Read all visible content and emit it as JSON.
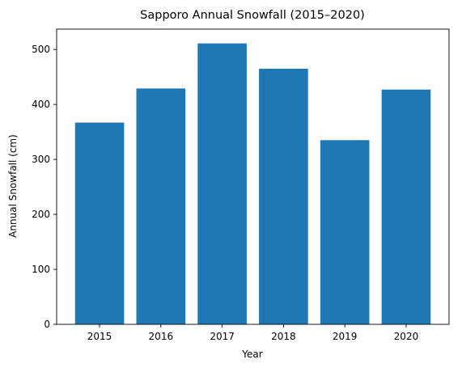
{
  "chart_data": {
    "type": "bar",
    "title": "Sapporo Annual Snowfall (2015–2020)",
    "xlabel": "Year",
    "ylabel": "Annual Snowfall (cm)",
    "categories": [
      "2015",
      "2016",
      "2017",
      "2018",
      "2019",
      "2020"
    ],
    "values": [
      367,
      429,
      511,
      465,
      335,
      427
    ],
    "ylim": [
      0,
      537
    ],
    "yticks": [
      0,
      100,
      200,
      300,
      400,
      500
    ],
    "grid": false,
    "legend": "none",
    "bar_color": "#1f77b4"
  }
}
